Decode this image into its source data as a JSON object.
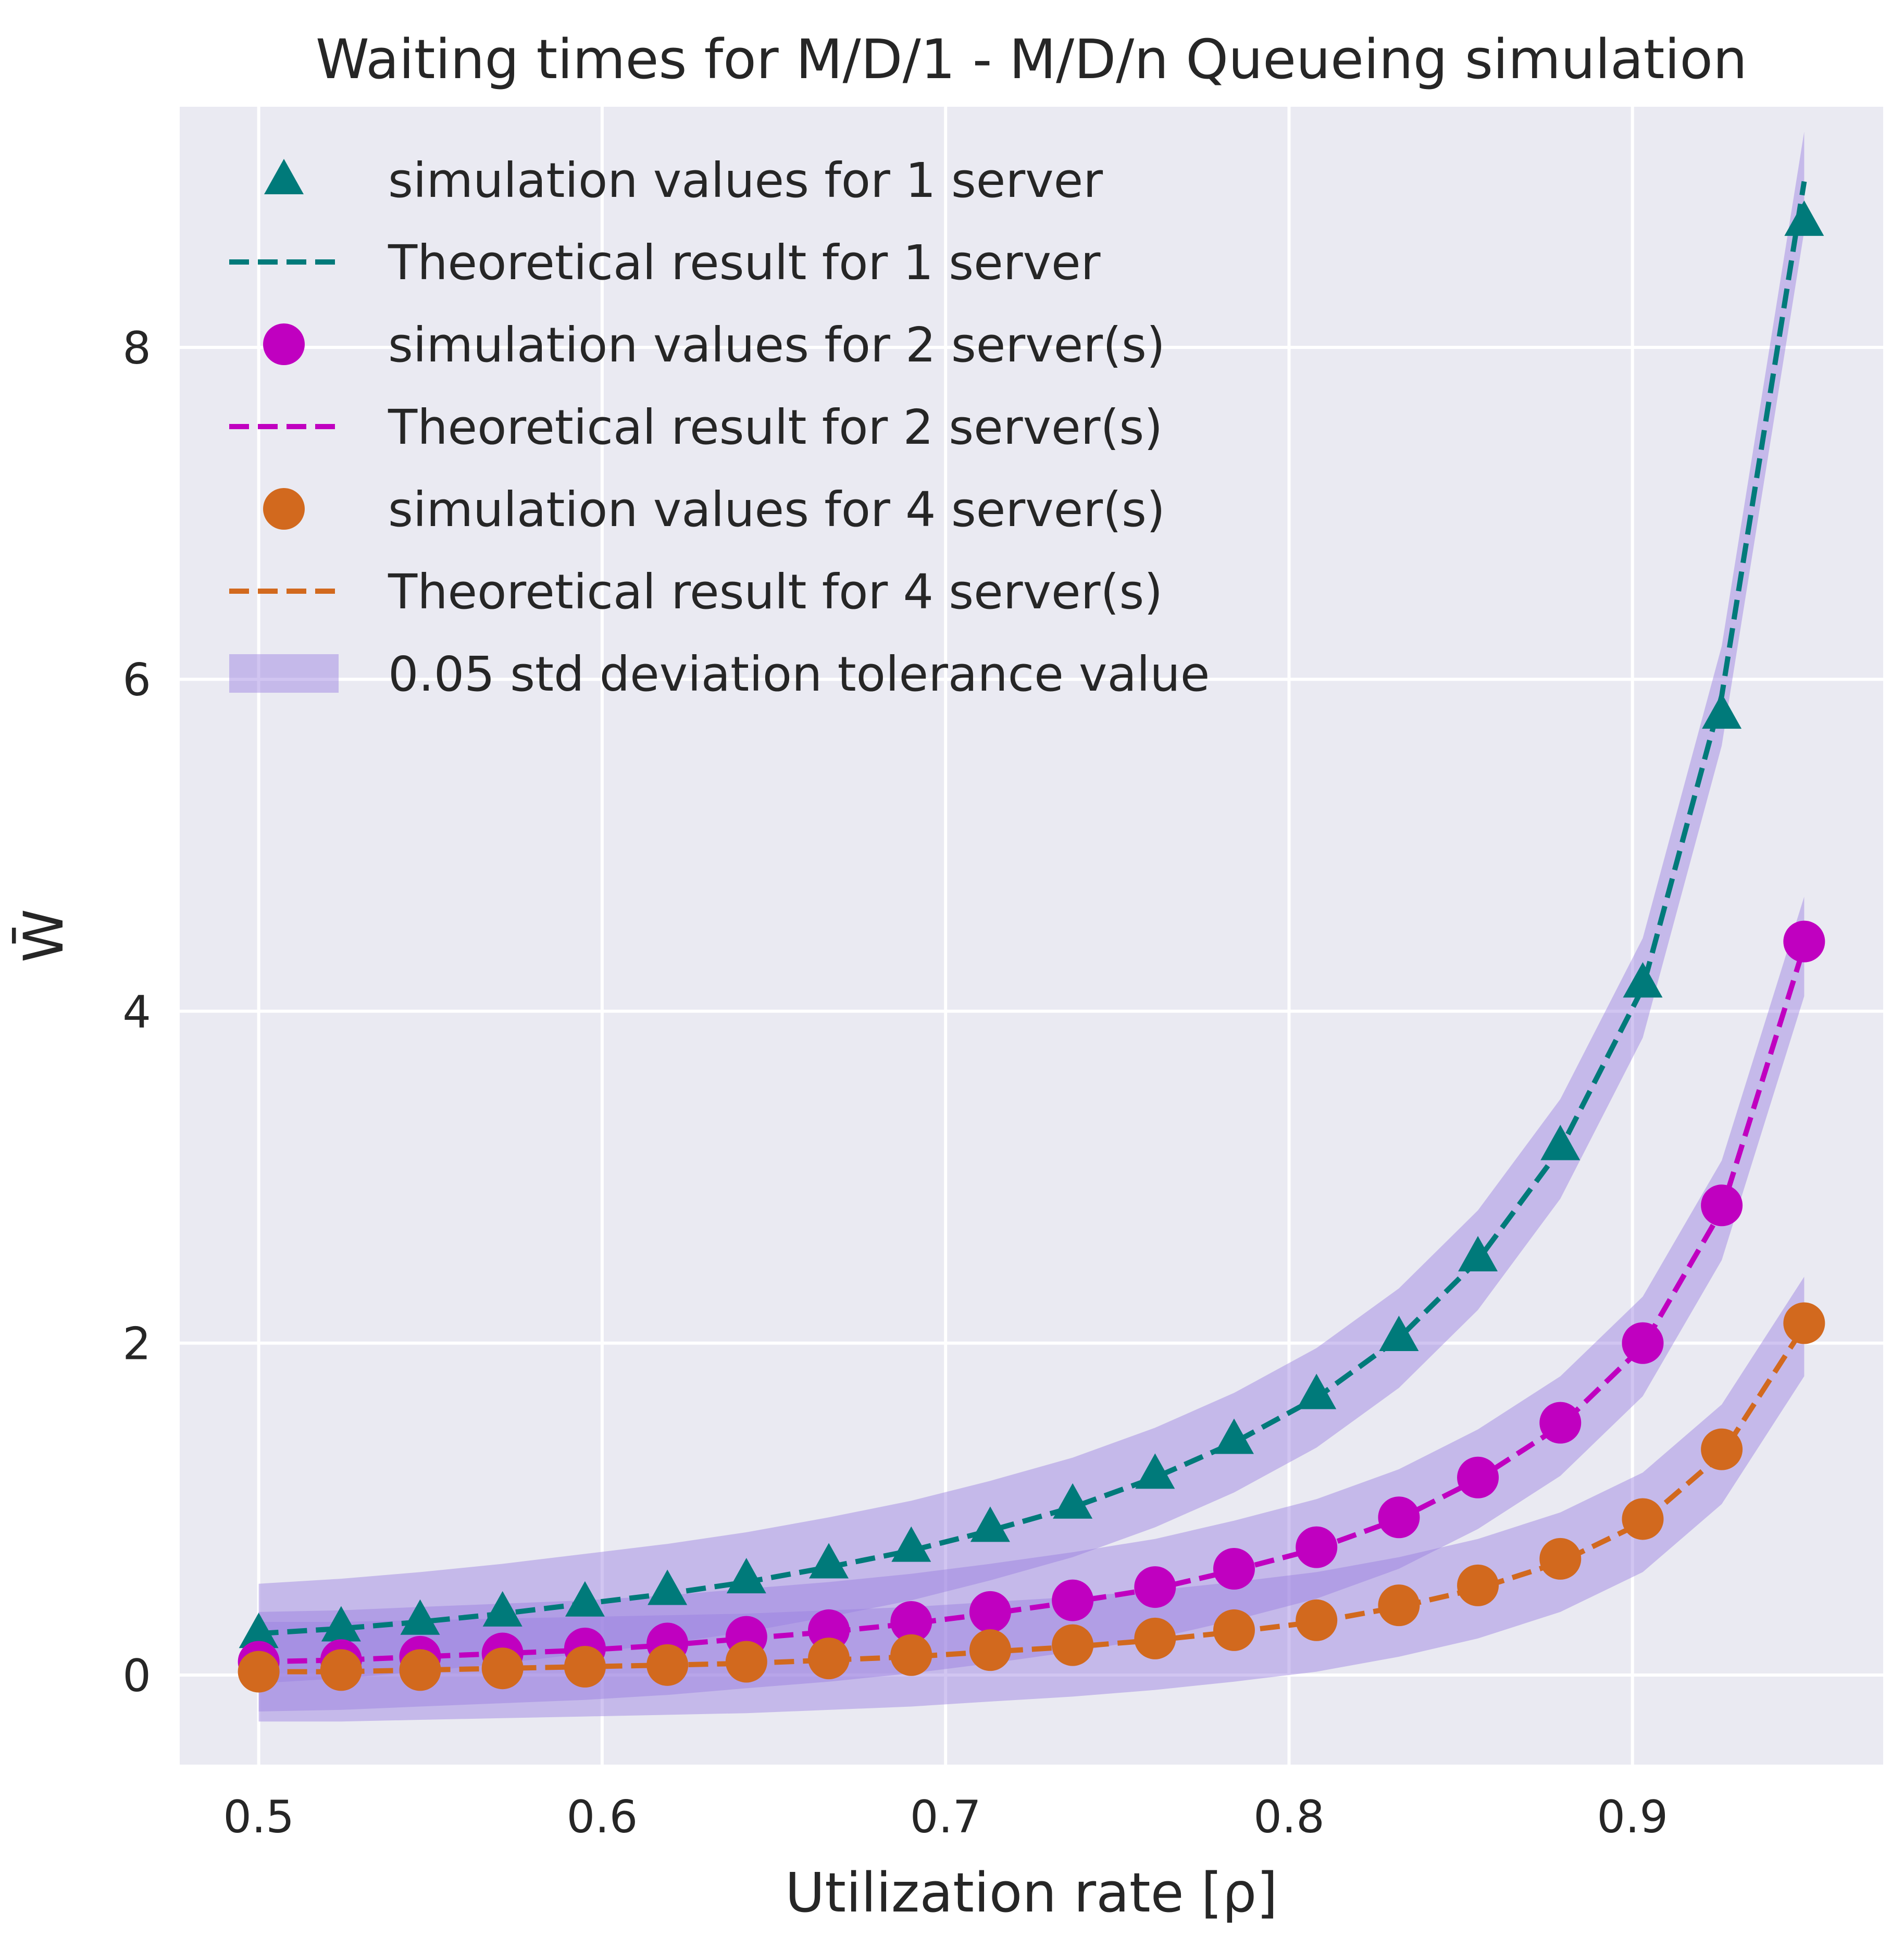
{
  "chart_data": {
    "type": "line",
    "title": "Waiting times for M/D/1 - M/D/n Queueing simulation",
    "xlabel": "Utilization rate [ρ]",
    "ylabel": "W̄",
    "xlim": [
      0.477,
      0.973
    ],
    "ylim": [
      -0.54,
      9.45
    ],
    "xticks": [
      "0.5",
      "0.6",
      "0.7",
      "0.8",
      "0.9"
    ],
    "yticks": [
      "0",
      "2",
      "4",
      "6",
      "8"
    ],
    "grid": true,
    "legend_position": "top-left",
    "band_label": "0.05 std deviation tolerance value",
    "band_color": "#9a7fe0",
    "x": [
      0.5,
      0.524,
      0.547,
      0.571,
      0.595,
      0.619,
      0.642,
      0.666,
      0.69,
      0.713,
      0.737,
      0.761,
      0.784,
      0.808,
      0.832,
      0.855,
      0.879,
      0.903,
      0.926,
      0.95
    ],
    "series": [
      {
        "name": "simulation values for 1 server",
        "kind": "scatter",
        "marker": "triangle",
        "color": "#007a7a",
        "values": [
          0.25,
          0.29,
          0.33,
          0.38,
          0.44,
          0.51,
          0.58,
          0.67,
          0.77,
          0.89,
          1.03,
          1.21,
          1.42,
          1.69,
          2.04,
          2.52,
          3.19,
          4.17,
          5.79,
          8.76
        ]
      },
      {
        "name": "Theoretical result for 1 server",
        "kind": "line",
        "color": "#007a7a",
        "values": [
          0.25,
          0.28,
          0.32,
          0.37,
          0.43,
          0.49,
          0.56,
          0.65,
          0.75,
          0.87,
          1.01,
          1.19,
          1.4,
          1.67,
          2.03,
          2.5,
          3.17,
          4.14,
          5.9,
          9.0
        ]
      },
      {
        "name": "simulation values for 2 server(s)",
        "kind": "scatter",
        "marker": "circle",
        "color": "#c000c0",
        "values": [
          0.08,
          0.09,
          0.11,
          0.13,
          0.16,
          0.19,
          0.23,
          0.27,
          0.32,
          0.38,
          0.45,
          0.53,
          0.64,
          0.77,
          0.95,
          1.19,
          1.52,
          2.0,
          2.83,
          4.42
        ]
      },
      {
        "name": "Theoretical result for 2 server(s)",
        "kind": "line",
        "color": "#c000c0",
        "values": [
          0.08,
          0.09,
          0.11,
          0.13,
          0.15,
          0.18,
          0.22,
          0.26,
          0.31,
          0.37,
          0.44,
          0.52,
          0.63,
          0.76,
          0.94,
          1.18,
          1.5,
          1.98,
          2.8,
          4.39
        ]
      },
      {
        "name": "simulation values for 4 server(s)",
        "kind": "scatter",
        "marker": "circle",
        "color": "#d2691e",
        "values": [
          0.02,
          0.03,
          0.03,
          0.04,
          0.05,
          0.06,
          0.08,
          0.1,
          0.12,
          0.15,
          0.18,
          0.22,
          0.27,
          0.33,
          0.42,
          0.54,
          0.7,
          0.94,
          1.36,
          2.12
        ]
      },
      {
        "name": "Theoretical result for 4 server(s)",
        "kind": "line",
        "color": "#d2691e",
        "values": [
          0.02,
          0.02,
          0.03,
          0.04,
          0.05,
          0.06,
          0.07,
          0.09,
          0.11,
          0.14,
          0.17,
          0.21,
          0.26,
          0.32,
          0.41,
          0.52,
          0.68,
          0.92,
          1.33,
          2.1
        ]
      }
    ]
  }
}
